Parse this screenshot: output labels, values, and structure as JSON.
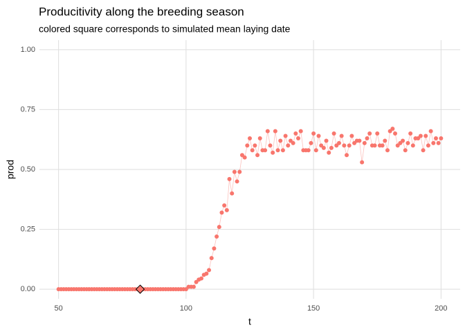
{
  "chart_data": {
    "type": "line",
    "title": "Producitivity along the breeding season",
    "subtitle": "colored square corresponds to simulated mean laying date",
    "x_label": "t",
    "y_label": "prod",
    "x": [
      50,
      51,
      52,
      53,
      54,
      55,
      56,
      57,
      58,
      59,
      60,
      61,
      62,
      63,
      64,
      65,
      66,
      67,
      68,
      69,
      70,
      71,
      72,
      73,
      74,
      75,
      76,
      77,
      78,
      79,
      80,
      81,
      82,
      83,
      84,
      85,
      86,
      87,
      88,
      89,
      90,
      91,
      92,
      93,
      94,
      95,
      96,
      97,
      98,
      99,
      100,
      101,
      102,
      103,
      104,
      105,
      106,
      107,
      108,
      109,
      110,
      111,
      112,
      113,
      114,
      115,
      116,
      117,
      118,
      119,
      120,
      121,
      122,
      123,
      124,
      125,
      126,
      127,
      128,
      129,
      130,
      131,
      132,
      133,
      134,
      135,
      136,
      137,
      138,
      139,
      140,
      141,
      142,
      143,
      144,
      145,
      146,
      147,
      148,
      149,
      150,
      151,
      152,
      153,
      154,
      155,
      156,
      157,
      158,
      159,
      160,
      161,
      162,
      163,
      164,
      165,
      166,
      167,
      168,
      169,
      170,
      171,
      172,
      173,
      174,
      175,
      176,
      177,
      178,
      179,
      180,
      181,
      182,
      183,
      184,
      185,
      186,
      187,
      188,
      189,
      190,
      191,
      192,
      193,
      194,
      195,
      196,
      197,
      198,
      199,
      200
    ],
    "values": [
      0,
      0,
      0,
      0,
      0,
      0,
      0,
      0,
      0,
      0,
      0,
      0,
      0,
      0,
      0,
      0,
      0,
      0,
      0,
      0,
      0,
      0,
      0,
      0,
      0,
      0,
      0,
      0,
      0,
      0,
      0,
      0,
      0,
      0,
      0,
      0,
      0,
      0,
      0,
      0,
      0,
      0,
      0,
      0,
      0,
      0,
      0,
      0,
      0,
      0,
      0,
      0.01,
      0.01,
      0.01,
      0.03,
      0.04,
      0.045,
      0.06,
      0.065,
      0.08,
      0.13,
      0.17,
      0.22,
      0.26,
      0.32,
      0.35,
      0.33,
      0.46,
      0.4,
      0.49,
      0.45,
      0.49,
      0.56,
      0.55,
      0.6,
      0.63,
      0.58,
      0.6,
      0.56,
      0.63,
      0.58,
      0.58,
      0.66,
      0.6,
      0.57,
      0.66,
      0.58,
      0.62,
      0.58,
      0.64,
      0.6,
      0.62,
      0.61,
      0.65,
      0.63,
      0.66,
      0.58,
      0.58,
      0.58,
      0.61,
      0.65,
      0.58,
      0.64,
      0.6,
      0.59,
      0.62,
      0.57,
      0.59,
      0.65,
      0.6,
      0.61,
      0.64,
      0.6,
      0.56,
      0.6,
      0.64,
      0.61,
      0.62,
      0.62,
      0.53,
      0.61,
      0.63,
      0.65,
      0.6,
      0.6,
      0.65,
      0.6,
      0.6,
      0.62,
      0.58,
      0.66,
      0.67,
      0.65,
      0.6,
      0.61,
      0.62,
      0.58,
      0.61,
      0.65,
      0.6,
      0.63,
      0.63,
      0.64,
      0.58,
      0.64,
      0.6,
      0.66,
      0.61,
      0.63,
      0.61,
      0.63
    ],
    "color": "#F8766D",
    "highlight": {
      "x": 82,
      "y": 0
    },
    "xlim": [
      42.5,
      207.5
    ],
    "ylim": [
      -0.04,
      1.04
    ],
    "xticks": [
      50,
      100,
      150,
      200
    ],
    "yticks": [
      {
        "value": 0,
        "label": "0.00"
      },
      {
        "value": 0.25,
        "label": "0.25"
      },
      {
        "value": 0.5,
        "label": "0.50"
      },
      {
        "value": 0.75,
        "label": "0.75"
      },
      {
        "value": 1,
        "label": "1.00"
      }
    ],
    "grid": true
  }
}
